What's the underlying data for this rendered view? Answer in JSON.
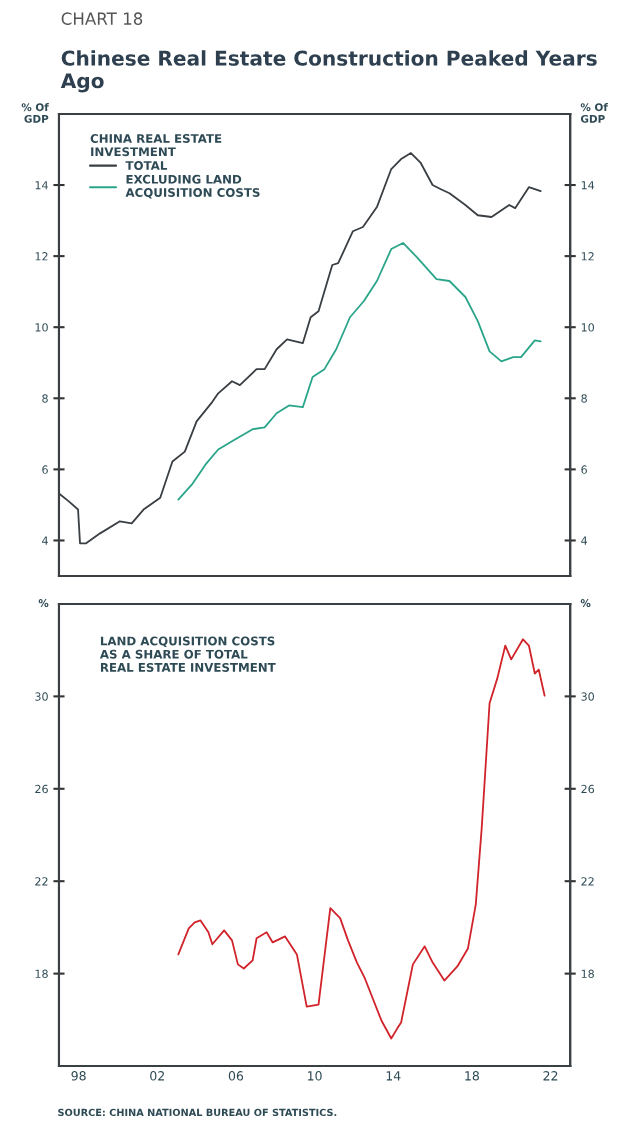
{
  "chart_data": [
    {
      "type": "line",
      "subtitle": "CHART 18",
      "title": "Chinese Real Estate Construction Peaked Years Ago",
      "ylabel": "% Of\nGDP",
      "y2label": "% Of\nGDP",
      "legend_title": "CHINA REAL ESTATE\nINVESTMENT",
      "legend": "top left",
      "grid": false,
      "tick_labels": "y",
      "xlim": [
        1997,
        2023
      ],
      "xticks": [
        {
          "value": 1998,
          "label": null
        },
        {
          "value": 2002,
          "label": null
        },
        {
          "value": 2006,
          "label": null
        },
        {
          "value": 2010,
          "label": null
        },
        {
          "value": 2014,
          "label": null
        },
        {
          "value": 2018,
          "label": null
        },
        {
          "value": 2022,
          "label": null
        }
      ],
      "ylim": [
        3,
        16
      ],
      "yticks": [
        4,
        6,
        8,
        10,
        12,
        14
      ],
      "y2lim": [
        3,
        16
      ],
      "y2ticks": [
        4,
        6,
        8,
        10,
        12,
        14
      ],
      "series": [
        {
          "name": "TOTAL",
          "color": "#3a3f44",
          "x": [
            1997.0,
            1997.5,
            1997.97,
            1998.07,
            1998.38,
            1999.09,
            2000.1,
            2000.7,
            2001.3,
            2002.15,
            2002.77,
            2003.4,
            2004.0,
            2004.8,
            2005.1,
            2005.8,
            2006.2,
            2007.05,
            2007.46,
            2008.07,
            2008.6,
            2009.4,
            2009.8,
            2010.2,
            2010.9,
            2011.2,
            2011.95,
            2012.46,
            2013.17,
            2013.9,
            2014.4,
            2014.9,
            2015.4,
            2016.0,
            2016.4,
            2016.86,
            2017.67,
            2018.3,
            2019.0,
            2019.9,
            2020.2,
            2020.9,
            2021.5
          ],
          "values": [
            5.32,
            5.1,
            4.87,
            3.92,
            3.92,
            4.2,
            4.54,
            4.48,
            4.87,
            5.2,
            6.22,
            6.5,
            7.35,
            7.9,
            8.14,
            8.48,
            8.37,
            8.82,
            8.82,
            9.38,
            9.66,
            9.55,
            10.28,
            10.45,
            11.75,
            11.8,
            12.7,
            12.82,
            13.38,
            14.45,
            14.73,
            14.9,
            14.62,
            14.0,
            13.89,
            13.77,
            13.44,
            13.15,
            13.1,
            13.44,
            13.35,
            13.94,
            13.83
          ]
        },
        {
          "name": "EXCLUDING LAND\nACQUISITION COSTS",
          "color": "#2aa58a",
          "x": [
            2003.07,
            2003.8,
            2004.5,
            2005.1,
            2005.8,
            2006.85,
            2007.46,
            2008.07,
            2008.7,
            2009.4,
            2009.9,
            2010.5,
            2011.1,
            2011.8,
            2012.5,
            2013.17,
            2013.9,
            2014.5,
            2015.2,
            2016.2,
            2016.86,
            2017.67,
            2018.3,
            2018.9,
            2019.5,
            2020.1,
            2020.5,
            2021.2,
            2021.5
          ],
          "values": [
            5.15,
            5.6,
            6.17,
            6.56,
            6.79,
            7.13,
            7.18,
            7.58,
            7.8,
            7.75,
            8.6,
            8.82,
            9.38,
            10.28,
            10.73,
            11.3,
            12.2,
            12.37,
            11.97,
            11.35,
            11.3,
            10.85,
            10.17,
            9.32,
            9.04,
            9.16,
            9.16,
            9.63,
            9.6
          ]
        }
      ]
    },
    {
      "type": "line",
      "ylabel": "%",
      "y2label": "%",
      "grid": false,
      "legend": false,
      "annotations": [
        "LAND ACQUISITION COSTS\nAS A SHARE OF TOTAL\nREAL ESTATE INVESTMENT",
        "SOURCE: CHINA NATIONAL BUREAU OF STATISTICS."
      ],
      "xlim": [
        1997,
        2023
      ],
      "xticks": [
        {
          "value": 1998,
          "label": "98"
        },
        {
          "value": 2002,
          "label": "02"
        },
        {
          "value": 2006,
          "label": "06"
        },
        {
          "value": 2010,
          "label": "10"
        },
        {
          "value": 2014,
          "label": "14"
        },
        {
          "value": 2018,
          "label": "18"
        },
        {
          "value": 2022,
          "label": "22"
        }
      ],
      "ylim": [
        14,
        34
      ],
      "yticks": [
        18,
        22,
        26,
        30
      ],
      "y2lim": [
        14,
        34
      ],
      "y2ticks": [
        18,
        22,
        26,
        30
      ],
      "series": [
        {
          "color": "#d1232a",
          "x": [
            2003.07,
            2003.6,
            2003.9,
            2004.2,
            2004.6,
            2004.8,
            2005.4,
            2005.8,
            2006.1,
            2006.4,
            2006.85,
            2007.05,
            2007.56,
            2007.87,
            2008.5,
            2009.1,
            2009.6,
            2010.2,
            2010.8,
            2011.3,
            2011.7,
            2012.15,
            2012.56,
            2013.4,
            2013.9,
            2014.2,
            2014.4,
            2015.0,
            2015.6,
            2016.0,
            2016.6,
            2017.26,
            2017.8,
            2018.2,
            2018.5,
            2018.9,
            2019.3,
            2019.7,
            2020.0,
            2020.6,
            2020.9,
            2021.2,
            2021.4,
            2021.7
          ],
          "values": [
            18.83,
            19.96,
            20.22,
            20.3,
            19.79,
            19.27,
            19.87,
            19.44,
            18.4,
            18.22,
            18.57,
            19.53,
            19.79,
            19.35,
            19.61,
            18.83,
            16.57,
            16.66,
            20.83,
            20.4,
            19.44,
            18.49,
            17.79,
            15.97,
            15.19,
            15.62,
            15.88,
            18.4,
            19.18,
            18.49,
            17.7,
            18.31,
            19.09,
            21.0,
            24.3,
            29.7,
            30.8,
            32.2,
            31.6,
            32.47,
            32.2,
            30.99,
            31.16,
            30.03
          ]
        }
      ]
    }
  ]
}
